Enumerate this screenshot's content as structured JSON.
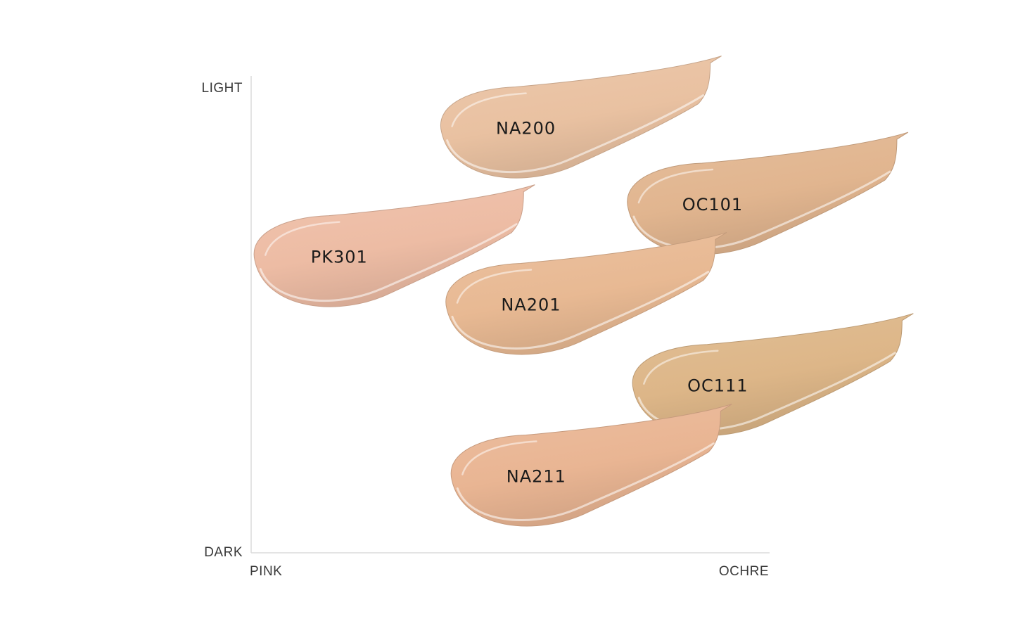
{
  "chart_data": {
    "type": "scatter",
    "title": "",
    "xlabel": "",
    "ylabel": "",
    "x_axis": {
      "min_label": "PINK",
      "max_label": "OCHRE",
      "range": [
        0,
        1
      ]
    },
    "y_axis": {
      "min_label": "DARK",
      "max_label": "LIGHT",
      "range": [
        0,
        1
      ]
    },
    "grid": false,
    "points": [
      {
        "label": "NA200",
        "x": 0.53,
        "y": 0.89,
        "color": "#e9c1a1"
      },
      {
        "label": "OC101",
        "x": 0.89,
        "y": 0.73,
        "color": "#e1b58f"
      },
      {
        "label": "PK301",
        "x": 0.17,
        "y": 0.62,
        "color": "#edbca4"
      },
      {
        "label": "NA201",
        "x": 0.54,
        "y": 0.52,
        "color": "#e8b993"
      },
      {
        "label": "OC111",
        "x": 0.9,
        "y": 0.35,
        "color": "#ddb688"
      },
      {
        "label": "NA211",
        "x": 0.55,
        "y": 0.16,
        "color": "#e9b593"
      }
    ]
  }
}
